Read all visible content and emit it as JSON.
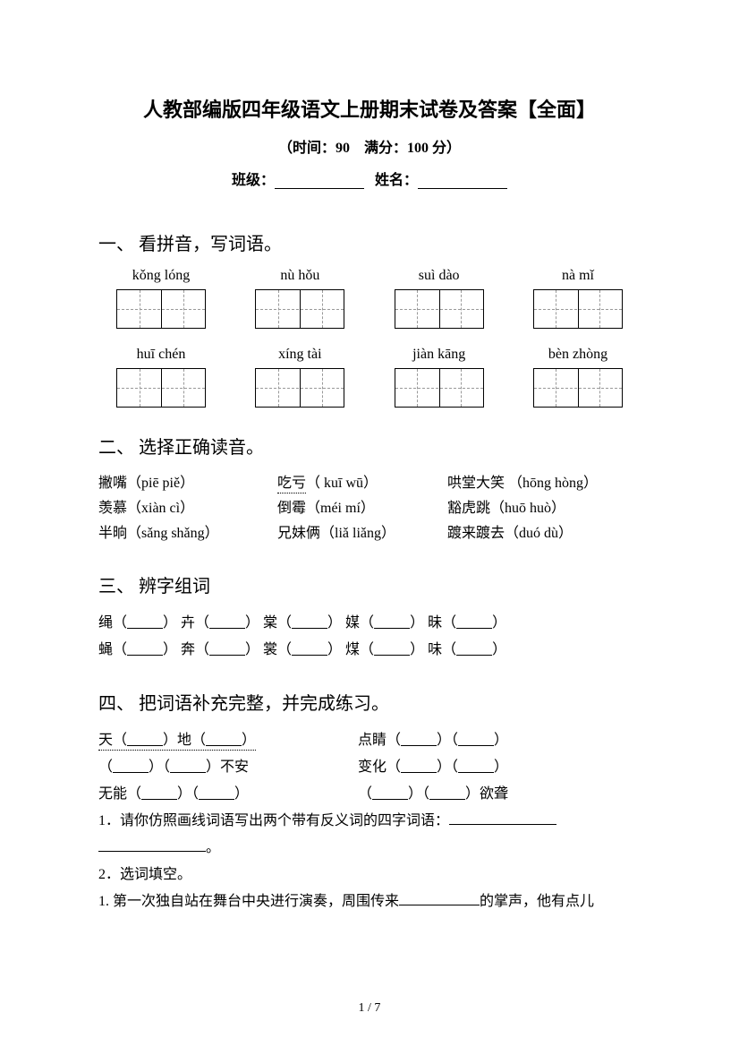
{
  "title": "人教部编版四年级语文上册期末试卷及答案【全面】",
  "time_score": "（时间：90　满分：100 分）",
  "class_label": "班级：",
  "name_label": "姓名：",
  "section1": {
    "title": "一、 看拼音，写词语。",
    "row1": [
      "kǒng lóng",
      "nù   hǒu",
      "suì   dào",
      "nà   mǐ"
    ],
    "row2": [
      "huī   chén",
      "xíng  tài",
      "jiàn   kāng",
      "bèn  zhòng"
    ]
  },
  "section2": {
    "title": "二、 选择正确读音。",
    "rows": [
      [
        "撇嘴（piē   piě）",
        "吃亏（ kuī wū）",
        "哄堂大笑 （hōng hòng）"
      ],
      [
        "羡慕（xiàn   cì）",
        "倒霉（méi   mí）",
        "豁虎跳（huō huò）"
      ],
      [
        "半晌（sǎng shǎng）",
        "兄妹俩（liǎ liǎng）",
        "踱来踱去（duó dù）"
      ]
    ]
  },
  "section3": {
    "title": "三、 辨字组词",
    "blank": "          ",
    "rows": [
      [
        "绳（",
        "） 卉（",
        "） 棠（",
        "） 媒（",
        "） 昧（",
        "）"
      ],
      [
        "蝇（",
        "） 奔（",
        "） 裳（",
        "） 煤（",
        "） 味（",
        "）"
      ]
    ]
  },
  "section4": {
    "title": "四、 把词语补充完整，并完成练习。",
    "blank": "          ",
    "rows": [
      {
        "left_pre": "天（",
        "left_mid": "）地（",
        "left_end": "）",
        "right_pre": "点睛（",
        "right_mid": "）（",
        "right_end": "）"
      },
      {
        "left_pre": "（",
        "left_mid1": "）（",
        "left_mid2": "）不安",
        "right_pre": "变化（",
        "right_mid": "）（",
        "right_end": "）"
      },
      {
        "left_pre": "无能（",
        "left_mid": "）（",
        "left_end": "）",
        "right_pre": "（",
        "right_mid": "）（",
        "right_end": "）欲聋"
      }
    ],
    "q1": "1．请你仿照画线词语写出两个带有反义词的四字词语：",
    "q1_end": "。",
    "q2": "2．选词填空。",
    "q3": "1. 第一次独自站在舞台中央进行演奏，周围传来",
    "q3_end": "的掌声，他有点儿"
  },
  "page_number": "1 / 7",
  "colors": {
    "background": "#ffffff",
    "text": "#000000",
    "border": "#000000",
    "dashed": "#999999"
  }
}
